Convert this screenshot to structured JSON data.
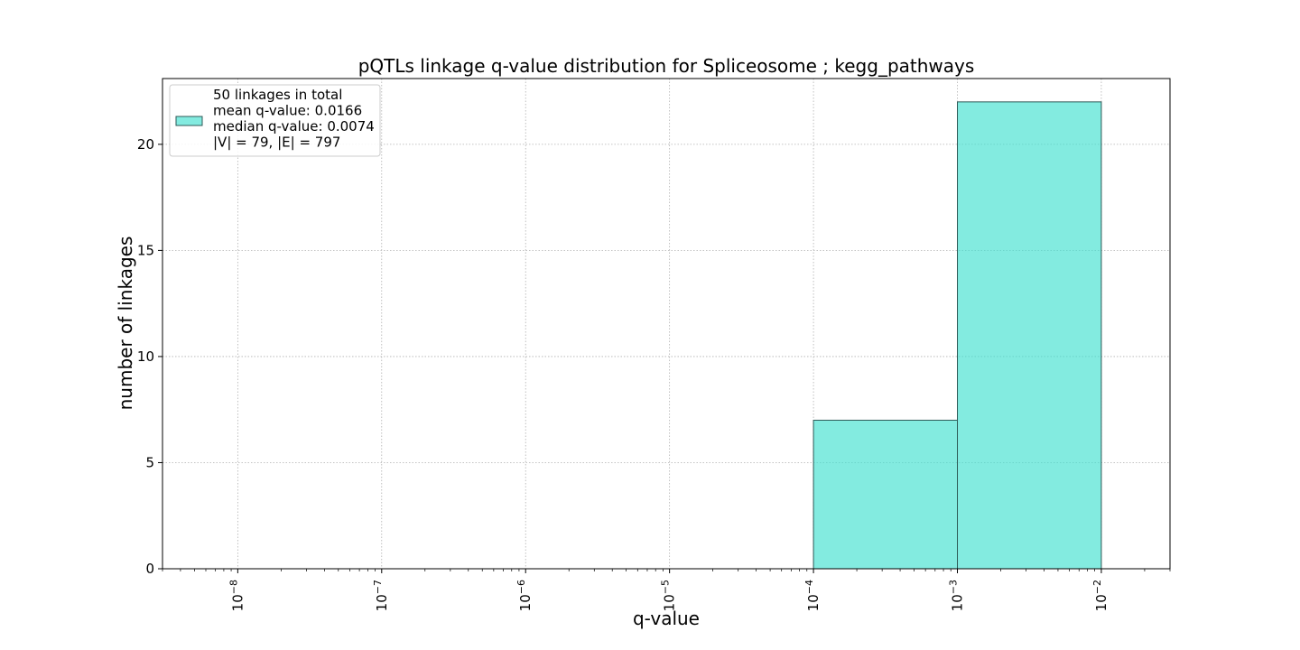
{
  "chart_data": {
    "type": "bar",
    "title": "pQTLs linkage q-value distribution for Spliceosome ; kegg_pathways",
    "xlabel": "q-value",
    "ylabel": "number of linkages",
    "x_scale": "log",
    "xlim": [
      3e-09,
      0.03
    ],
    "ylim": [
      0,
      23.1
    ],
    "grid": true,
    "bins": [
      {
        "x0": 0.0001,
        "x1": 0.001,
        "value": 7
      },
      {
        "x0": 0.001,
        "x1": 0.01,
        "value": 22
      }
    ],
    "x_ticks": [
      {
        "value": 1e-08,
        "base": "10",
        "exp": "−8"
      },
      {
        "value": 1e-07,
        "base": "10",
        "exp": "−7"
      },
      {
        "value": 1e-06,
        "base": "10",
        "exp": "−6"
      },
      {
        "value": 1e-05,
        "base": "10",
        "exp": "−5"
      },
      {
        "value": 0.0001,
        "base": "10",
        "exp": "−4"
      },
      {
        "value": 0.001,
        "base": "10",
        "exp": "−3"
      },
      {
        "value": 0.01,
        "base": "10",
        "exp": "−2"
      }
    ],
    "y_ticks": [
      0,
      5,
      10,
      15,
      20
    ],
    "legend": {
      "placement": "top-left",
      "lines": [
        "50 linkages in total",
        "mean q-value: 0.0166",
        "median q-value: 0.0074",
        "|V| = 79, |E| = 797"
      ]
    },
    "colors": {
      "bar_fill": "#40E0D0",
      "bar_alpha": 0.65,
      "bar_edge": "#2f5a57",
      "grid": "#b0b0b0",
      "axes": "#000000"
    }
  }
}
